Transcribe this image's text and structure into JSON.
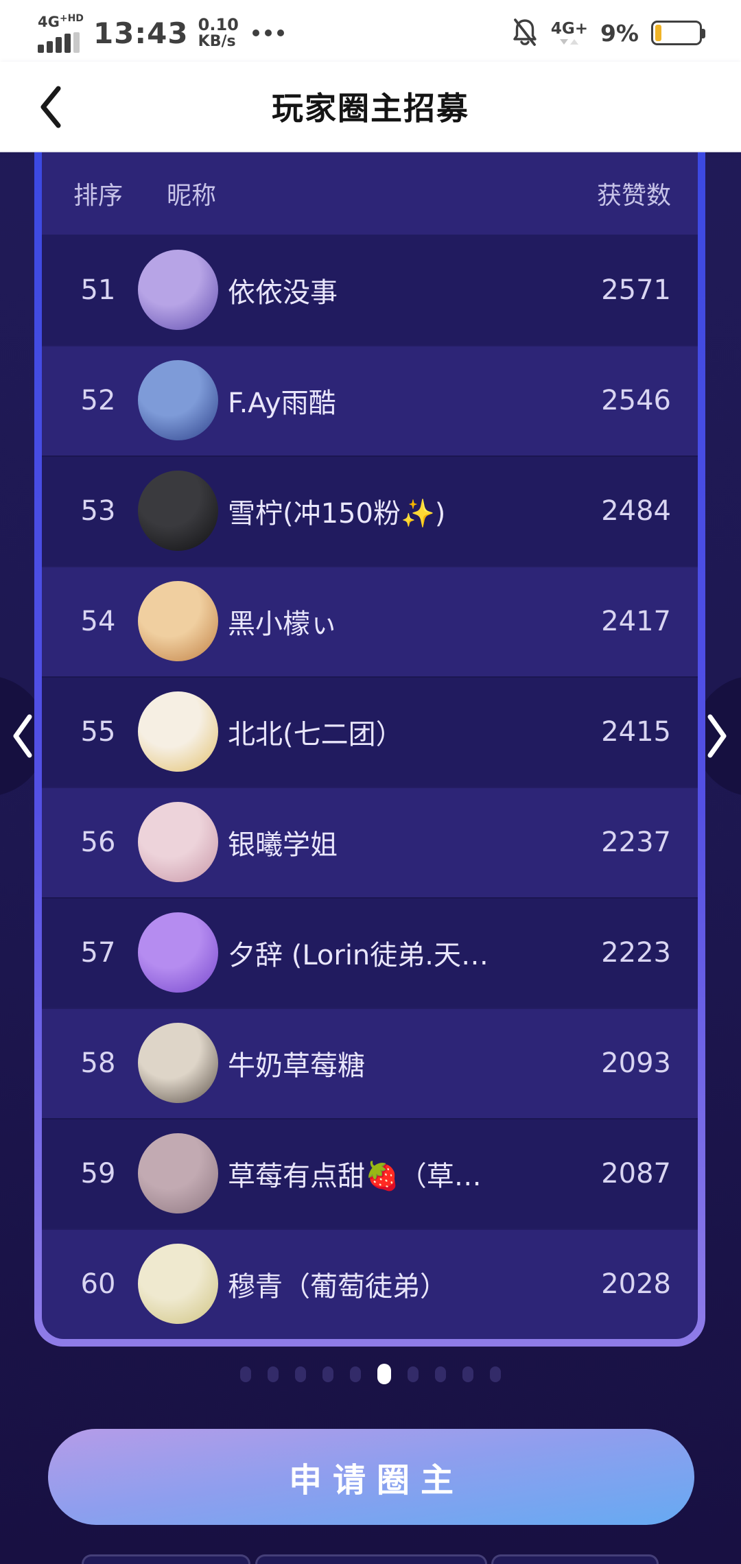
{
  "status_bar": {
    "network_label": "4G",
    "network_suffix": "+HD",
    "time": "13:43",
    "speed_value": "0.10",
    "speed_unit": "KB/s",
    "right": {
      "network": "4G+",
      "battery_percent": "9%"
    }
  },
  "header": {
    "title": "玩家圈主招募"
  },
  "table": {
    "columns": [
      "排序",
      "昵称",
      "获赞数"
    ],
    "rows": [
      {
        "rank": "51",
        "name": "依依没事",
        "likes": "2571",
        "avatar": "purple-anime-girl",
        "avatar_colors": [
          "#b7a4e6",
          "#5f4cae"
        ]
      },
      {
        "rank": "52",
        "name": "F.Ay雨酷",
        "likes": "2546",
        "avatar": "blue-anime-girl",
        "avatar_colors": [
          "#7e9bd8",
          "#2c3f88"
        ]
      },
      {
        "rank": "53",
        "name": "雪柠(冲150粉✨)",
        "likes": "2484",
        "avatar": "dark-photo",
        "avatar_colors": [
          "#3a3a3e",
          "#101012"
        ]
      },
      {
        "rank": "54",
        "name": "黑小檬ぃ",
        "likes": "2417",
        "avatar": "shiba-dog",
        "avatar_colors": [
          "#f0cfa0",
          "#bf7e42"
        ]
      },
      {
        "rank": "55",
        "name": "北北(七二团）",
        "likes": "2415",
        "avatar": "blonde-girl-drawing",
        "avatar_colors": [
          "#f6efe3",
          "#e2c06c"
        ]
      },
      {
        "rank": "56",
        "name": "银曦学姐",
        "likes": "2237",
        "avatar": "pink-girl-photo",
        "avatar_colors": [
          "#edd3da",
          "#c795a6"
        ]
      },
      {
        "rank": "57",
        "name": "夕辞 (Lorin徒弟.天…",
        "likes": "2223",
        "avatar": "bright-purple-figure",
        "avatar_colors": [
          "#b58cf0",
          "#7647cc"
        ]
      },
      {
        "rank": "58",
        "name": "牛奶草莓糖",
        "likes": "2093",
        "avatar": "girl-black-bun",
        "avatar_colors": [
          "#ded5c8",
          "#5a5048"
        ]
      },
      {
        "rank": "59",
        "name": "草莓有点甜🍓（草…",
        "likes": "2087",
        "avatar": "mauve-girl-sunglasses",
        "avatar_colors": [
          "#c2aab2",
          "#8d7680"
        ]
      },
      {
        "rank": "60",
        "name": "穆青（葡萄徒弟）",
        "likes": "2028",
        "avatar": "pale-yellow-anime-girl",
        "avatar_colors": [
          "#efe9cf",
          "#cfc37f"
        ]
      }
    ]
  },
  "pagination": {
    "total_dots": 10,
    "active_index": 5
  },
  "apply_button": {
    "label": "申请圈主"
  },
  "colors": {
    "card_border_top": "#3c49e2",
    "card_border_bottom": "#8f7ce8",
    "row_dark": "#211b5f",
    "row_light": "#2d2577",
    "battery_fill": "#f0b428",
    "button_gradient": [
      "#b59ce8",
      "#66aaf2"
    ]
  }
}
